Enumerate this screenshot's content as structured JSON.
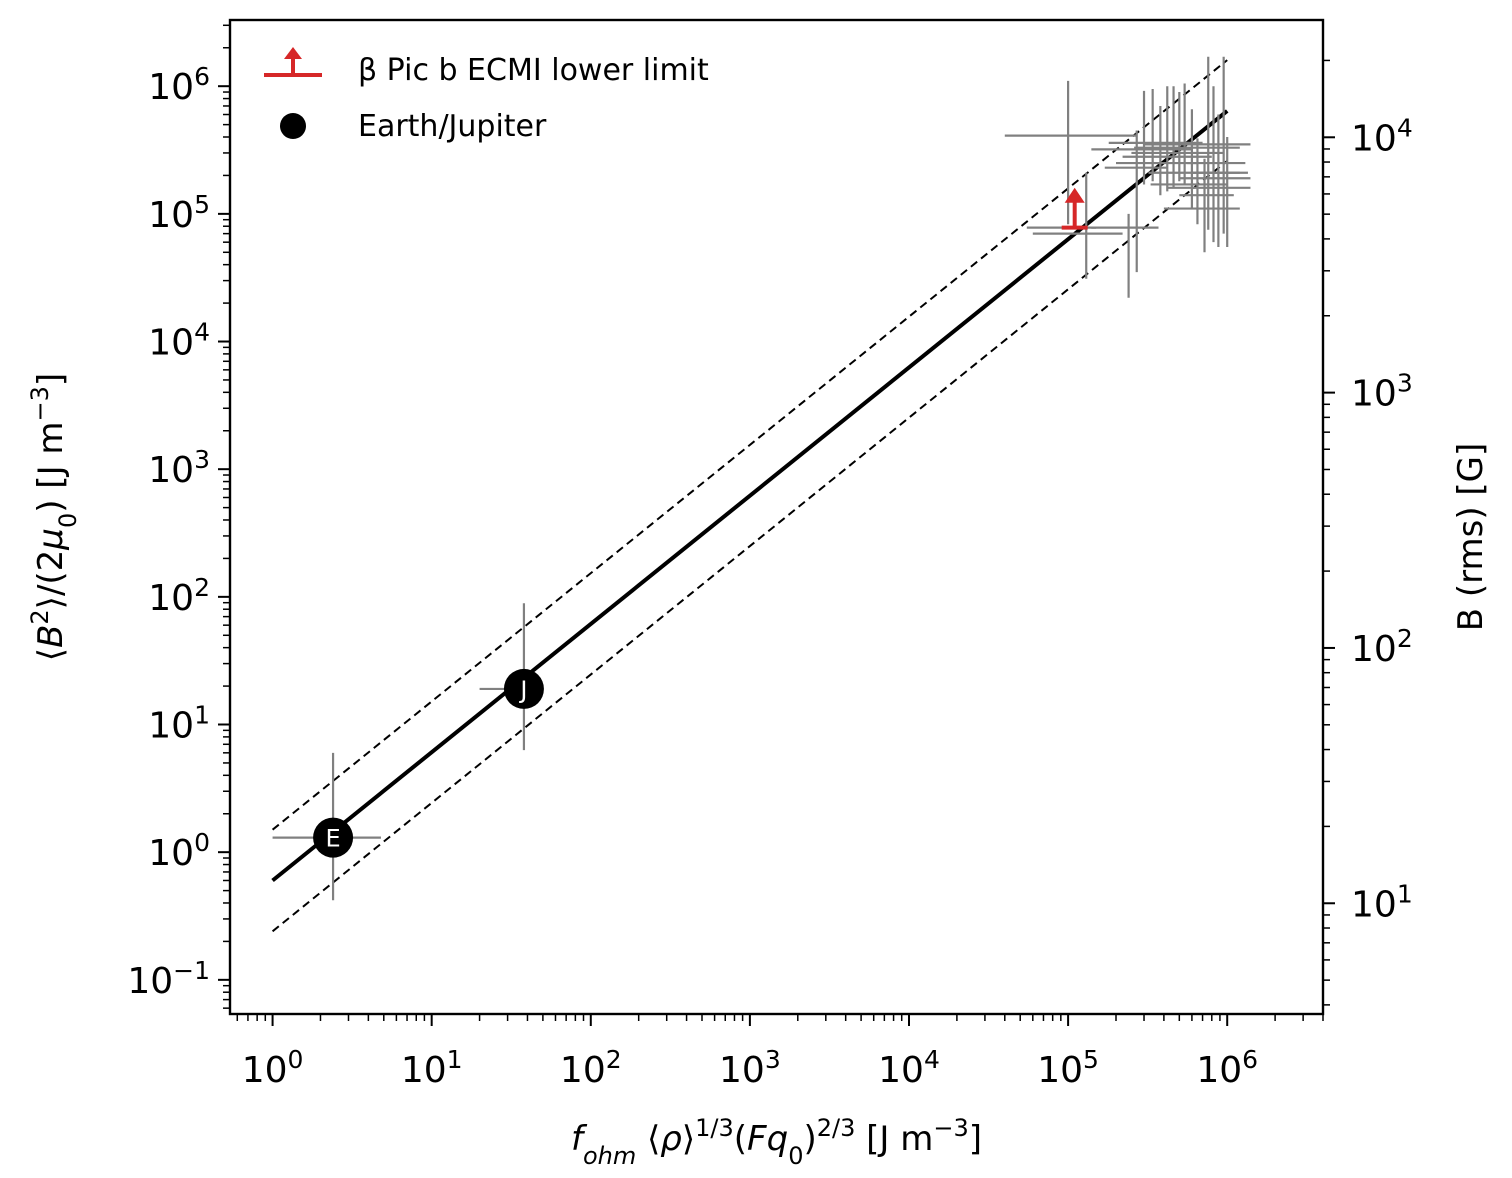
{
  "chart_data": {
    "type": "scatter",
    "xlabel": "f_ohm ⟨ρ⟩^{1/3}(Fq_0)^{2/3}  [J m^{−3}]",
    "ylabel": "⟨B^2⟩/(2μ_0)  [J m^{−3}]",
    "ylabel_right": "B (rms) [G]",
    "x_scale": "log",
    "y_scale": "log",
    "xlim": [
      0.54,
      4000000
    ],
    "ylim": [
      0.054,
      3300000
    ],
    "x_ticks": [
      {
        "base": "10",
        "exp": "0"
      },
      {
        "base": "10",
        "exp": "1"
      },
      {
        "base": "10",
        "exp": "2"
      },
      {
        "base": "10",
        "exp": "3"
      },
      {
        "base": "10",
        "exp": "4"
      },
      {
        "base": "10",
        "exp": "5"
      },
      {
        "base": "10",
        "exp": "6"
      }
    ],
    "y_ticks": [
      {
        "base": "10",
        "exp": "−1"
      },
      {
        "base": "10",
        "exp": "0"
      },
      {
        "base": "10",
        "exp": "1"
      },
      {
        "base": "10",
        "exp": "2"
      },
      {
        "base": "10",
        "exp": "3"
      },
      {
        "base": "10",
        "exp": "4"
      },
      {
        "base": "10",
        "exp": "5"
      },
      {
        "base": "10",
        "exp": "6"
      }
    ],
    "y_right_ticks": [
      {
        "base": "10",
        "exp": "1",
        "gauss": 10
      },
      {
        "base": "10",
        "exp": "2",
        "gauss": 100
      },
      {
        "base": "10",
        "exp": "3",
        "gauss": 1000
      },
      {
        "base": "10",
        "exp": "4",
        "gauss": 10000
      }
    ],
    "fit_line": {
      "x": [
        1,
        1000000
      ],
      "y": [
        0.6,
        640000
      ],
      "color": "#000000",
      "style": "solid"
    },
    "fit_bounds": [
      {
        "x": [
          1,
          1000000
        ],
        "y": [
          1.5,
          1600000
        ],
        "style": "dashed"
      },
      {
        "x": [
          1,
          1000000
        ],
        "y": [
          0.24,
          260000
        ],
        "style": "dashed"
      }
    ],
    "labeled_points": [
      {
        "label": "E",
        "x": 2.4,
        "y": 1.3,
        "xerr": [
          1.0,
          4.8
        ],
        "yerr": [
          0.42,
          6.0
        ]
      },
      {
        "label": "J",
        "x": 38,
        "y": 19,
        "xerr": [
          20,
          44
        ],
        "yerr": [
          6.3,
          89
        ]
      }
    ],
    "lower_limit": {
      "x": 110000,
      "y": 78000,
      "x_err": [
        55000,
        150000
      ],
      "arrow_to": 160000,
      "color": "#d62728"
    },
    "error_points": [
      {
        "x": 100000,
        "y": 410000,
        "xerr": [
          40000,
          270000
        ],
        "yerr": [
          83000,
          1100000
        ]
      },
      {
        "x": 130000,
        "y": 70000,
        "xerr": [
          60000,
          220000
        ],
        "yerr": [
          31000,
          210000
        ]
      },
      {
        "x": 240000,
        "y": 78000,
        "xerr": [
          140000,
          370000
        ],
        "yerr": [
          22000,
          100000
        ]
      },
      {
        "x": 270000,
        "y": 230000,
        "xerr": [
          170000,
          420000
        ],
        "yerr": [
          35000,
          450000
        ]
      },
      {
        "x": 300000,
        "y": 320000,
        "xerr": [
          140000,
          600000
        ],
        "yerr": [
          170000,
          920000
        ]
      },
      {
        "x": 340000,
        "y": 360000,
        "xerr": [
          180000,
          700000
        ],
        "yerr": [
          180000,
          950000
        ]
      },
      {
        "x": 380000,
        "y": 250000,
        "xerr": [
          200000,
          650000
        ],
        "yerr": [
          140000,
          700000
        ]
      },
      {
        "x": 420000,
        "y": 280000,
        "xerr": [
          220000,
          800000
        ],
        "yerr": [
          150000,
          1000000
        ]
      },
      {
        "x": 460000,
        "y": 300000,
        "xerr": [
          250000,
          950000
        ],
        "yerr": [
          160000,
          1000000
        ]
      },
      {
        "x": 500000,
        "y": 330000,
        "xerr": [
          260000,
          1200000
        ],
        "yerr": [
          180000,
          900000
        ]
      },
      {
        "x": 540000,
        "y": 350000,
        "xerr": [
          300000,
          1400000
        ],
        "yerr": [
          170000,
          1050000
        ]
      },
      {
        "x": 600000,
        "y": 210000,
        "xerr": [
          320000,
          1200000
        ],
        "yerr": [
          110000,
          660000
        ]
      },
      {
        "x": 650000,
        "y": 170000,
        "xerr": [
          330000,
          1000000
        ],
        "yerr": [
          83000,
          390000
        ]
      },
      {
        "x": 720000,
        "y": 110000,
        "xerr": [
          400000,
          1200000
        ],
        "yerr": [
          50000,
          270000
        ]
      },
      {
        "x": 760000,
        "y": 160000,
        "xerr": [
          420000,
          1400000
        ],
        "yerr": [
          75000,
          1700000
        ]
      },
      {
        "x": 820000,
        "y": 140000,
        "xerr": [
          500000,
          1100000
        ],
        "yerr": [
          60000,
          1000000
        ]
      },
      {
        "x": 880000,
        "y": 190000,
        "xerr": [
          500000,
          1400000
        ],
        "yerr": [
          55000,
          600000
        ]
      },
      {
        "x": 950000,
        "y": 250000,
        "xerr": [
          560000,
          1300000
        ],
        "yerr": [
          70000,
          1700000
        ]
      },
      {
        "x": 1000000,
        "y": 210000,
        "xerr": [
          600000,
          1350000
        ],
        "yerr": [
          55000,
          400000
        ]
      }
    ],
    "legend": {
      "placement": "top-left",
      "entries": [
        {
          "label": "β Pic b ECMI lower limit",
          "marker": "lower-limit-arrow",
          "color": "#d62728"
        },
        {
          "label": "Earth/Jupiter",
          "marker": "filled-circle",
          "color": "#000000"
        }
      ]
    },
    "colors": {
      "errorbar": "#808080",
      "lower_limit": "#d62728",
      "line": "#000000"
    }
  }
}
